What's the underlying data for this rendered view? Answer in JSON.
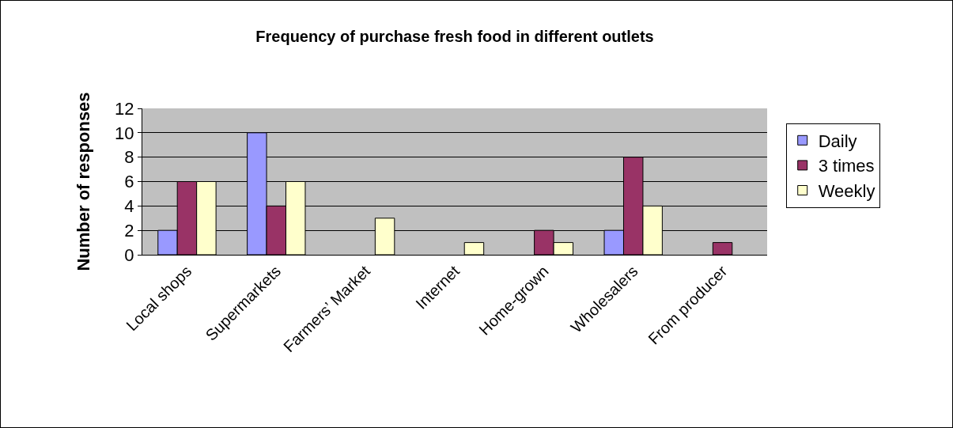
{
  "chart_data": {
    "type": "bar",
    "title": "Frequency of purchase fresh food in different outlets",
    "ylabel": "Number of responses",
    "categories": [
      "Local shops",
      "Supermarkets",
      "Farmers’ Market",
      "Internet",
      "Home-grown",
      "Wholesalers",
      "From producer"
    ],
    "series": [
      {
        "name": "Daily",
        "color": "#9999ff",
        "values": [
          2,
          10,
          0,
          0,
          0,
          2,
          0
        ]
      },
      {
        "name": "3 times",
        "color": "#993366",
        "values": [
          6,
          4,
          0,
          0,
          2,
          8,
          1
        ]
      },
      {
        "name": "Weekly",
        "color": "#ffffcc",
        "values": [
          6,
          6,
          3,
          1,
          1,
          4,
          0
        ]
      }
    ],
    "ylim": [
      0,
      12
    ],
    "yticks": [
      0,
      2,
      4,
      6,
      8,
      10,
      12
    ],
    "grid": "y",
    "legend": "right"
  }
}
